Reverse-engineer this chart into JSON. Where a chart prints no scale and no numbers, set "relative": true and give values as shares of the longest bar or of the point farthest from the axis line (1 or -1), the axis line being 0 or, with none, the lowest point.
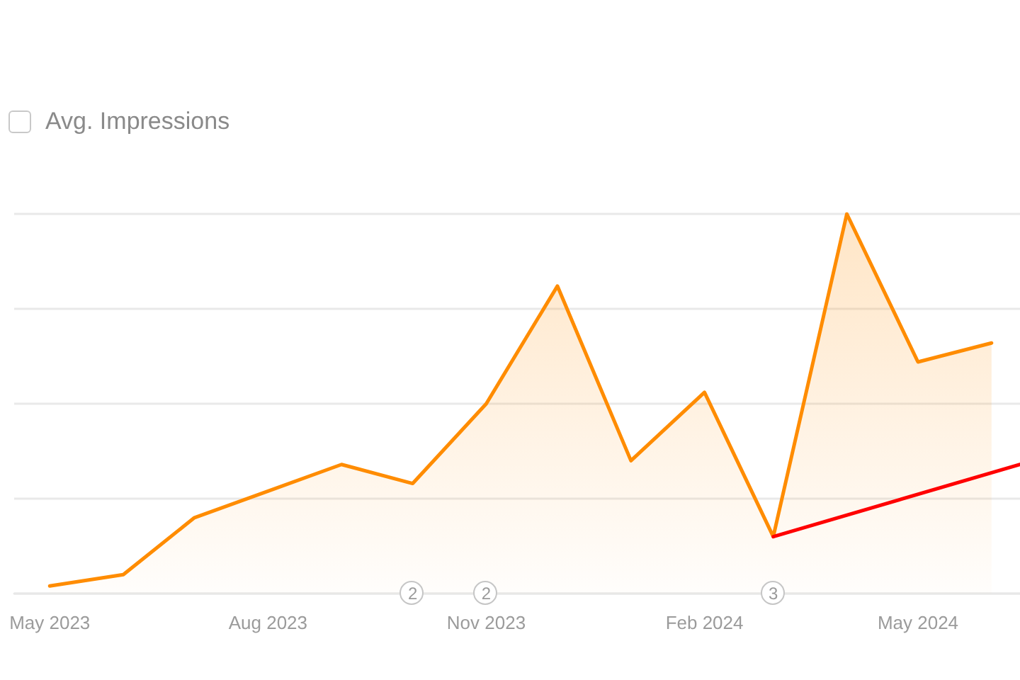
{
  "chart_data": {
    "type": "area",
    "relative": true,
    "grid": "y",
    "x": [
      "2023-05",
      "2023-06",
      "2023-07",
      "2023-08",
      "2023-09",
      "2023-10",
      "2023-11",
      "2023-12",
      "2024-01",
      "2024-02",
      "2024-03",
      "2024-04",
      "2024-05",
      "2024-06"
    ],
    "xlim": [
      "2023-04-16",
      "2024-06-13"
    ],
    "xticks": [
      {
        "value": "2023-05",
        "label": "May 2023"
      },
      {
        "value": "2023-08",
        "label": "Aug 2023"
      },
      {
        "value": "2023-11",
        "label": "Nov 2023"
      },
      {
        "value": "2024-02",
        "label": "Feb 2024"
      },
      {
        "value": "2024-05",
        "label": "May 2024"
      }
    ],
    "series": [
      {
        "color": "#ff8c00",
        "values": [
          0.02,
          0.05,
          0.2,
          0.27,
          0.34,
          0.29,
          0.5,
          0.81,
          0.35,
          0.53,
          0.15,
          1,
          0.61,
          0.66
        ]
      },
      {
        "type": "line",
        "color": "#ff0000",
        "x": [
          "2024-03",
          "2024-06-13"
        ],
        "values": [
          0.15,
          0.34
        ]
      }
    ],
    "annotations": [
      "Avg. Impressions",
      {
        "text": "2",
        "x": "2023-10",
        "y": 0
      },
      {
        "text": "2",
        "x": "2023-11",
        "y": 0
      },
      {
        "text": "3",
        "x": "2024-03",
        "y": 0
      }
    ]
  }
}
